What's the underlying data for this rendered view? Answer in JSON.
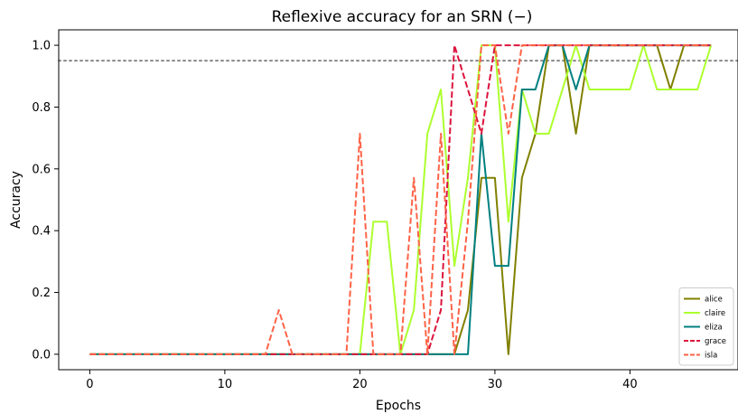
{
  "chart_data": {
    "type": "line",
    "title": "Reflexive accuracy for an SRN (−)",
    "xlabel": "Epochs",
    "ylabel": "Accuracy",
    "xlim": [
      -2.3,
      48.0
    ],
    "ylim": [
      -0.05,
      1.05
    ],
    "xticks": [
      0,
      10,
      20,
      30,
      40
    ],
    "xtick_labels": [
      "0",
      "10",
      "20",
      "30",
      "40"
    ],
    "yticks": [
      0.0,
      0.2,
      0.4,
      0.6,
      0.8,
      1.0
    ],
    "ytick_labels": [
      "0.0",
      "0.2",
      "0.4",
      "0.6",
      "0.8",
      "1.0"
    ],
    "grid": false,
    "legend_position": "lower-right",
    "reference_line": {
      "y": 0.95,
      "style": "dotted",
      "color": "#888888"
    },
    "x": [
      0,
      1,
      2,
      3,
      4,
      5,
      6,
      7,
      8,
      9,
      10,
      11,
      12,
      13,
      14,
      15,
      16,
      17,
      18,
      19,
      20,
      21,
      22,
      23,
      24,
      25,
      26,
      27,
      28,
      29,
      30,
      31,
      32,
      33,
      34,
      35,
      36,
      37,
      38,
      39,
      40,
      41,
      42,
      43,
      44,
      45,
      46
    ],
    "series": [
      {
        "name": "alice",
        "color": "#808000",
        "dash": "solid",
        "values": [
          0,
          0,
          0,
          0,
          0,
          0,
          0,
          0,
          0,
          0,
          0,
          0,
          0,
          0,
          0,
          0,
          0,
          0,
          0,
          0,
          0,
          0,
          0,
          0,
          0,
          0,
          0,
          0,
          0.143,
          0.571,
          0.571,
          0,
          0.571,
          0.714,
          1,
          1,
          0.714,
          1,
          1,
          1,
          1,
          1,
          1,
          0.857,
          1,
          1,
          1
        ]
      },
      {
        "name": "claire",
        "color": "#adff2f",
        "dash": "solid",
        "values": [
          0,
          0,
          0,
          0,
          0,
          0,
          0,
          0,
          0,
          0,
          0,
          0,
          0,
          0,
          0,
          0,
          0,
          0,
          0,
          0,
          0,
          0.429,
          0.429,
          0,
          0.143,
          0.714,
          0.857,
          0.286,
          0.571,
          1,
          1,
          0.429,
          0.857,
          0.714,
          0.714,
          0.857,
          1,
          0.857,
          0.857,
          0.857,
          0.857,
          1,
          0.857,
          0.857,
          0.857,
          0.857,
          1
        ]
      },
      {
        "name": "eliza",
        "color": "#008080",
        "dash": "solid",
        "values": [
          0,
          0,
          0,
          0,
          0,
          0,
          0,
          0,
          0,
          0,
          0,
          0,
          0,
          0,
          0,
          0,
          0,
          0,
          0,
          0,
          0,
          0,
          0,
          0,
          0,
          0,
          0,
          0,
          0,
          0.714,
          0.286,
          0.286,
          0.857,
          0.857,
          1,
          1,
          0.857,
          1,
          1,
          1,
          1,
          1,
          1,
          1,
          1,
          1,
          1
        ]
      },
      {
        "name": "grace",
        "color": "#dc143c",
        "dash": "dashed",
        "values": [
          0,
          0,
          0,
          0,
          0,
          0,
          0,
          0,
          0,
          0,
          0,
          0,
          0,
          0,
          0,
          0,
          0,
          0,
          0,
          0,
          0,
          0,
          0,
          0,
          0,
          0,
          0.143,
          1,
          0.857,
          0.714,
          1,
          1,
          1,
          1,
          1,
          1,
          1,
          1,
          1,
          1,
          1,
          1,
          1,
          1,
          1,
          1,
          1
        ]
      },
      {
        "name": "isla",
        "color": "#ff6347",
        "dash": "dashed",
        "values": [
          0,
          0,
          0,
          0,
          0,
          0,
          0,
          0,
          0,
          0,
          0,
          0,
          0,
          0,
          0.143,
          0,
          0,
          0,
          0,
          0,
          0.714,
          0,
          0,
          0,
          0.571,
          0,
          0.714,
          0,
          0.429,
          1,
          1,
          0.714,
          1,
          1,
          1,
          1,
          1,
          1,
          1,
          1,
          1,
          1,
          1,
          1,
          1,
          1,
          1
        ]
      }
    ]
  }
}
